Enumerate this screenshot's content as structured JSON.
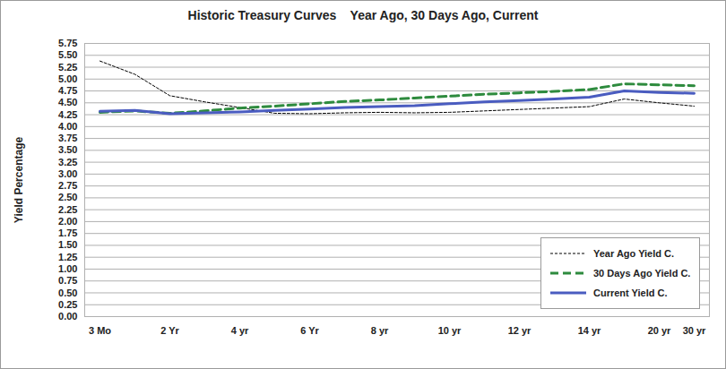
{
  "chart_data": {
    "type": "line",
    "title": "Historic Treasury Curves    Year Ago, 30 Days Ago, Current",
    "y_label": "Yield Percentage",
    "categories": [
      "3 Mo",
      null,
      "2 Yr",
      null,
      "4 yr",
      null,
      "6 Yr",
      null,
      "8 yr",
      null,
      "10 yr",
      null,
      "12 yr",
      null,
      "14 yr",
      null,
      "20 yr",
      "30 yr"
    ],
    "series": [
      {
        "name": "Year Ago Yield C.",
        "color": "#000000",
        "line_style": "dotted",
        "values": [
          5.38,
          5.1,
          4.65,
          4.52,
          4.4,
          4.28,
          4.27,
          4.29,
          4.3,
          4.29,
          4.3,
          4.33,
          4.36,
          4.39,
          4.42,
          4.58,
          4.5,
          4.43
        ]
      },
      {
        "name": "30 Days Ago Yield C.",
        "color": "#2e8b3e",
        "line_style": "dashed",
        "values": [
          4.3,
          4.33,
          4.28,
          4.33,
          4.39,
          4.43,
          4.48,
          4.53,
          4.56,
          4.6,
          4.64,
          4.68,
          4.71,
          4.74,
          4.78,
          4.9,
          4.88,
          4.86
        ]
      },
      {
        "name": "Current Yield C.",
        "color": "#4a5cc0",
        "line_style": "solid",
        "values": [
          4.32,
          4.34,
          4.27,
          4.29,
          4.31,
          4.34,
          4.37,
          4.4,
          4.42,
          4.44,
          4.48,
          4.52,
          4.55,
          4.58,
          4.62,
          4.75,
          4.72,
          4.7
        ]
      }
    ],
    "ylim": [
      0,
      5.75
    ],
    "yticks": [
      {
        "value": 0,
        "label": "0.00"
      },
      {
        "value": 0.25,
        "label": "0.25"
      },
      {
        "value": 0.5,
        "label": "0.50"
      },
      {
        "value": 0.75,
        "label": "0.75"
      },
      {
        "value": 1,
        "label": "1.00"
      },
      {
        "value": 1.25,
        "label": "1.25"
      },
      {
        "value": 1.5,
        "label": "1.50"
      },
      {
        "value": 1.75,
        "label": "1.75"
      },
      {
        "value": 2,
        "label": "2.00"
      },
      {
        "value": 2.25,
        "label": "2.25"
      },
      {
        "value": 2.5,
        "label": "2.50"
      },
      {
        "value": 2.75,
        "label": "2.75"
      },
      {
        "value": 3,
        "label": "3.00"
      },
      {
        "value": 3.25,
        "label": "3.25"
      },
      {
        "value": 3.5,
        "label": "3.50"
      },
      {
        "value": 3.75,
        "label": "3.75"
      },
      {
        "value": 4,
        "label": "4.00"
      },
      {
        "value": 4.25,
        "label": "4.25"
      },
      {
        "value": 4.5,
        "label": "4.50"
      },
      {
        "value": 4.75,
        "label": "4.75"
      },
      {
        "value": 5,
        "label": "5.00"
      },
      {
        "value": 5.25,
        "label": "5.25"
      },
      {
        "value": 5.5,
        "label": "5.50"
      },
      {
        "value": 5.75,
        "label": "5.75"
      }
    ],
    "grid": true,
    "legend": "lower right"
  }
}
